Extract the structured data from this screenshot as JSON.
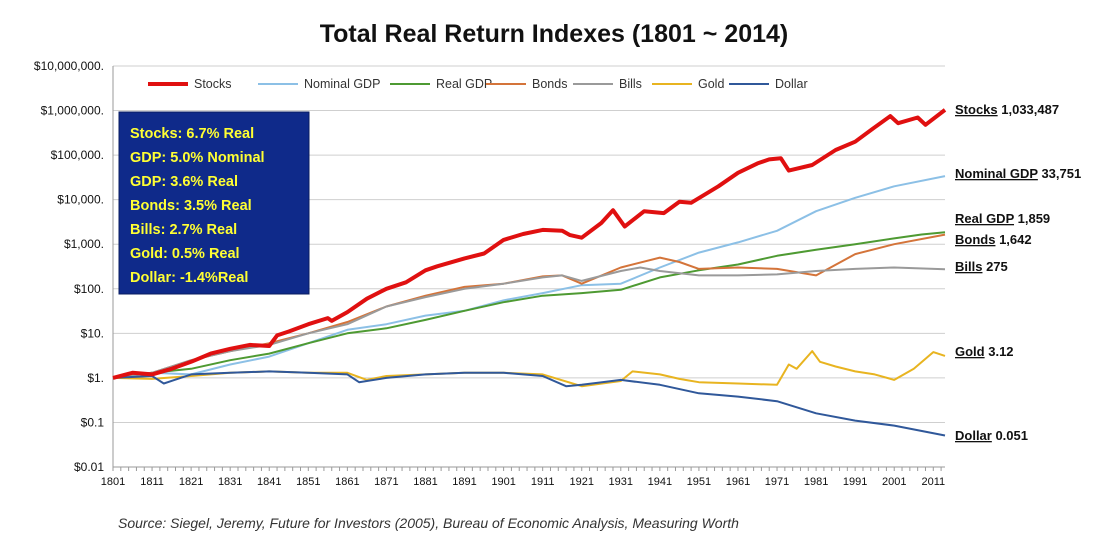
{
  "chart_data": {
    "type": "line",
    "title": "Total Real Return Indexes (1801 ~ 2014)",
    "y_scale": "log",
    "ylim": [
      0.01,
      10000000
    ],
    "xlim": [
      1801,
      2014
    ],
    "y_ticks": [
      {
        "value": 10000000,
        "label": "$10,000,000."
      },
      {
        "value": 1000000,
        "label": "$1,000,000."
      },
      {
        "value": 100000,
        "label": "$100,000."
      },
      {
        "value": 10000,
        "label": "$10,000."
      },
      {
        "value": 1000,
        "label": "$1,000."
      },
      {
        "value": 100,
        "label": "$100."
      },
      {
        "value": 10,
        "label": "$10."
      },
      {
        "value": 1,
        "label": "$1."
      },
      {
        "value": 0.1,
        "label": "$0.1"
      },
      {
        "value": 0.01,
        "label": "$0.01"
      }
    ],
    "x_ticks": [
      1801,
      1811,
      1821,
      1831,
      1841,
      1851,
      1861,
      1871,
      1881,
      1891,
      1901,
      1911,
      1921,
      1931,
      1941,
      1951,
      1961,
      1971,
      1981,
      1991,
      2001,
      2011
    ],
    "grid": "horizontal",
    "legend_position": "top",
    "annotation_box": {
      "lines": [
        "Stocks: 6.7% Real",
        "GDP: 5.0% Nominal",
        "GDP: 3.6% Real",
        "Bonds: 3.5% Real",
        "Bills:    2.7% Real",
        "Gold:   0.5% Real",
        "Dollar: -1.4%Real"
      ],
      "background": "#0f2a8a",
      "text_color": "#ffff33"
    },
    "series": [
      {
        "name": "Stocks",
        "color": "#e01010",
        "end_name": "Stocks",
        "end_value": "1,033,487",
        "points": [
          [
            1801,
            1
          ],
          [
            1806,
            1.3
          ],
          [
            1811,
            1.2
          ],
          [
            1816,
            1.6
          ],
          [
            1821,
            2.3
          ],
          [
            1826,
            3.5
          ],
          [
            1831,
            4.5
          ],
          [
            1836,
            5.5
          ],
          [
            1841,
            5.2
          ],
          [
            1843,
            9
          ],
          [
            1846,
            11
          ],
          [
            1851,
            16
          ],
          [
            1856,
            22
          ],
          [
            1857,
            19
          ],
          [
            1861,
            30
          ],
          [
            1866,
            60
          ],
          [
            1871,
            100
          ],
          [
            1876,
            140
          ],
          [
            1881,
            260
          ],
          [
            1884,
            320
          ],
          [
            1891,
            480
          ],
          [
            1896,
            620
          ],
          [
            1901,
            1250
          ],
          [
            1906,
            1700
          ],
          [
            1911,
            2100
          ],
          [
            1916,
            2000
          ],
          [
            1918,
            1600
          ],
          [
            1921,
            1400
          ],
          [
            1926,
            3000
          ],
          [
            1929,
            5800
          ],
          [
            1932,
            2500
          ],
          [
            1937,
            5500
          ],
          [
            1942,
            5000
          ],
          [
            1946,
            9000
          ],
          [
            1949,
            8500
          ],
          [
            1956,
            20000
          ],
          [
            1961,
            40000
          ],
          [
            1966,
            65000
          ],
          [
            1969,
            80000
          ],
          [
            1972,
            85000
          ],
          [
            1974,
            45000
          ],
          [
            1980,
            60000
          ],
          [
            1986,
            130000
          ],
          [
            1991,
            200000
          ],
          [
            1996,
            420000
          ],
          [
            2000,
            750000
          ],
          [
            2002,
            520000
          ],
          [
            2007,
            700000
          ],
          [
            2009,
            480000
          ],
          [
            2014,
            1033487
          ]
        ]
      },
      {
        "name": "Nominal GDP",
        "color": "#8cc0e6",
        "end_name": "Nominal GDP",
        "end_value": "33,751",
        "points": [
          [
            1801,
            1
          ],
          [
            1811,
            1.3
          ],
          [
            1821,
            1.2
          ],
          [
            1831,
            2
          ],
          [
            1841,
            3
          ],
          [
            1851,
            6
          ],
          [
            1861,
            12
          ],
          [
            1871,
            16
          ],
          [
            1881,
            25
          ],
          [
            1891,
            32
          ],
          [
            1901,
            55
          ],
          [
            1911,
            80
          ],
          [
            1921,
            120
          ],
          [
            1931,
            130
          ],
          [
            1941,
            300
          ],
          [
            1951,
            650
          ],
          [
            1961,
            1100
          ],
          [
            1971,
            2000
          ],
          [
            1981,
            5500
          ],
          [
            1991,
            11000
          ],
          [
            2001,
            20000
          ],
          [
            2014,
            33751
          ]
        ]
      },
      {
        "name": "Real GDP",
        "color": "#4e9a32",
        "end_name": "Real GDP",
        "end_value": "1,859",
        "points": [
          [
            1801,
            1
          ],
          [
            1811,
            1.3
          ],
          [
            1821,
            1.6
          ],
          [
            1831,
            2.5
          ],
          [
            1841,
            3.5
          ],
          [
            1851,
            6
          ],
          [
            1861,
            10
          ],
          [
            1871,
            13
          ],
          [
            1881,
            20
          ],
          [
            1891,
            32
          ],
          [
            1901,
            50
          ],
          [
            1911,
            70
          ],
          [
            1921,
            80
          ],
          [
            1931,
            95
          ],
          [
            1941,
            180
          ],
          [
            1951,
            260
          ],
          [
            1961,
            350
          ],
          [
            1971,
            550
          ],
          [
            1981,
            750
          ],
          [
            1991,
            1000
          ],
          [
            2001,
            1350
          ],
          [
            2008,
            1650
          ],
          [
            2014,
            1859
          ]
        ]
      },
      {
        "name": "Bonds",
        "color": "#d4743a",
        "end_name": "Bonds",
        "end_value": "1,642",
        "points": [
          [
            1801,
            1
          ],
          [
            1811,
            1.3
          ],
          [
            1821,
            2.5
          ],
          [
            1831,
            4
          ],
          [
            1841,
            6
          ],
          [
            1851,
            10
          ],
          [
            1861,
            18
          ],
          [
            1871,
            40
          ],
          [
            1881,
            70
          ],
          [
            1891,
            110
          ],
          [
            1901,
            130
          ],
          [
            1911,
            190
          ],
          [
            1916,
            200
          ],
          [
            1921,
            130
          ],
          [
            1931,
            300
          ],
          [
            1941,
            500
          ],
          [
            1946,
            400
          ],
          [
            1951,
            280
          ],
          [
            1961,
            300
          ],
          [
            1971,
            280
          ],
          [
            1981,
            200
          ],
          [
            1991,
            600
          ],
          [
            2001,
            1000
          ],
          [
            2014,
            1642
          ]
        ]
      },
      {
        "name": "Bills",
        "color": "#9a9a9a",
        "end_name": "Bills",
        "end_value": "275",
        "points": [
          [
            1801,
            1
          ],
          [
            1811,
            1.3
          ],
          [
            1821,
            2.5
          ],
          [
            1831,
            4
          ],
          [
            1841,
            5.5
          ],
          [
            1851,
            10
          ],
          [
            1861,
            16
          ],
          [
            1871,
            40
          ],
          [
            1881,
            65
          ],
          [
            1891,
            100
          ],
          [
            1901,
            130
          ],
          [
            1911,
            180
          ],
          [
            1916,
            200
          ],
          [
            1921,
            150
          ],
          [
            1931,
            250
          ],
          [
            1936,
            300
          ],
          [
            1941,
            250
          ],
          [
            1951,
            200
          ],
          [
            1961,
            200
          ],
          [
            1971,
            210
          ],
          [
            1981,
            250
          ],
          [
            1991,
            280
          ],
          [
            2001,
            300
          ],
          [
            2014,
            275
          ]
        ]
      },
      {
        "name": "Gold",
        "color": "#e8b420",
        "end_name": "Gold",
        "end_value": "3.12",
        "points": [
          [
            1801,
            1
          ],
          [
            1811,
            0.95
          ],
          [
            1821,
            1.1
          ],
          [
            1831,
            1.3
          ],
          [
            1841,
            1.4
          ],
          [
            1851,
            1.3
          ],
          [
            1861,
            1.3
          ],
          [
            1866,
            0.9
          ],
          [
            1871,
            1.1
          ],
          [
            1881,
            1.2
          ],
          [
            1891,
            1.3
          ],
          [
            1901,
            1.3
          ],
          [
            1911,
            1.2
          ],
          [
            1921,
            0.65
          ],
          [
            1931,
            0.85
          ],
          [
            1934,
            1.4
          ],
          [
            1941,
            1.2
          ],
          [
            1946,
            0.95
          ],
          [
            1951,
            0.8
          ],
          [
            1961,
            0.75
          ],
          [
            1971,
            0.7
          ],
          [
            1974,
            2.0
          ],
          [
            1976,
            1.6
          ],
          [
            1980,
            4.0
          ],
          [
            1982,
            2.3
          ],
          [
            1986,
            1.8
          ],
          [
            1991,
            1.4
          ],
          [
            1996,
            1.2
          ],
          [
            2001,
            0.9
          ],
          [
            2006,
            1.6
          ],
          [
            2011,
            3.8
          ],
          [
            2014,
            3.12
          ]
        ]
      },
      {
        "name": "Dollar",
        "color": "#30589a",
        "end_name": "Dollar",
        "end_value": "0.051",
        "points": [
          [
            1801,
            1
          ],
          [
            1811,
            1.1
          ],
          [
            1814,
            0.75
          ],
          [
            1821,
            1.2
          ],
          [
            1831,
            1.3
          ],
          [
            1841,
            1.4
          ],
          [
            1851,
            1.3
          ],
          [
            1861,
            1.2
          ],
          [
            1864,
            0.8
          ],
          [
            1871,
            1.0
          ],
          [
            1881,
            1.2
          ],
          [
            1891,
            1.3
          ],
          [
            1901,
            1.3
          ],
          [
            1911,
            1.1
          ],
          [
            1917,
            0.65
          ],
          [
            1921,
            0.7
          ],
          [
            1931,
            0.9
          ],
          [
            1941,
            0.7
          ],
          [
            1951,
            0.45
          ],
          [
            1961,
            0.38
          ],
          [
            1971,
            0.3
          ],
          [
            1981,
            0.16
          ],
          [
            1991,
            0.11
          ],
          [
            2001,
            0.085
          ],
          [
            2014,
            0.051
          ]
        ]
      }
    ],
    "source": "Source: Siegel, Jeremy, Future for Investors (2005), Bureau of Economic Analysis, Measuring Worth"
  }
}
